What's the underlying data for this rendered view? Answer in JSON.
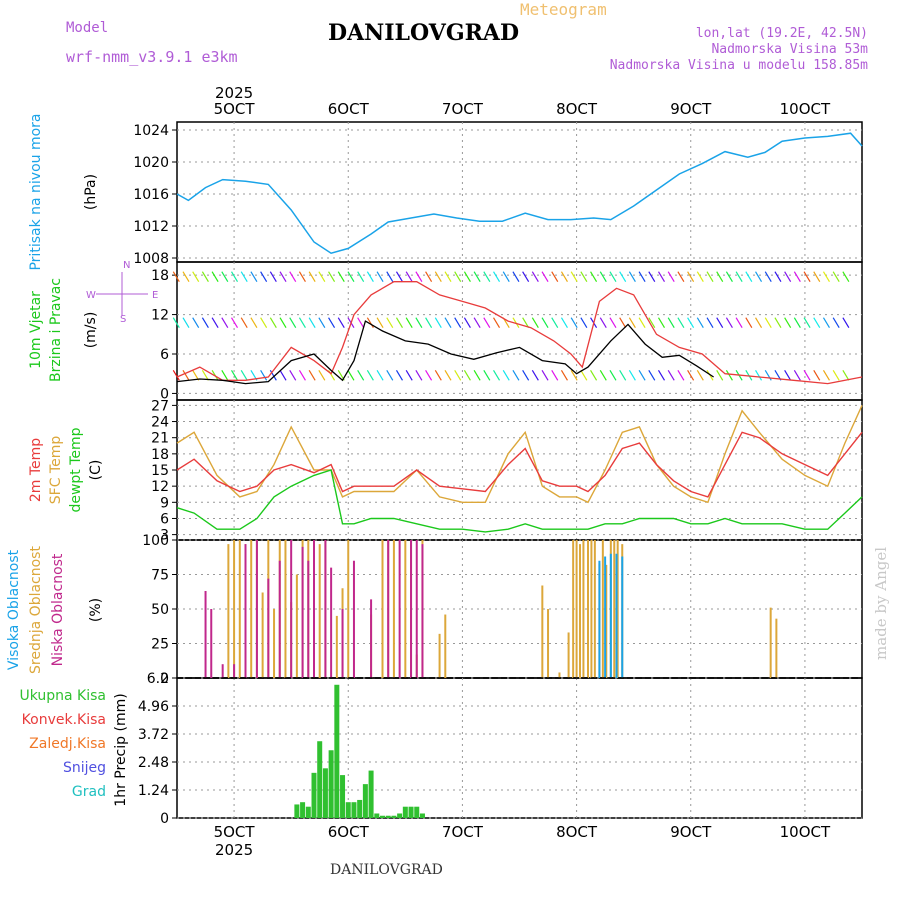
{
  "header": {
    "model_label": "Model",
    "model_name": "wrf-nmm_v3.9.1 e3km",
    "meteogram": "Meteogram",
    "station": "DANILOVGRAD",
    "location_lines": [
      "lon,lat (19.2E, 42.5N)",
      "Nadmorska Visina 53m",
      "Nadmorska Visina u modelu 158.85m"
    ]
  },
  "footer": {
    "station": "DANILOVGRAD",
    "watermark": "made by Angel"
  },
  "colors": {
    "pressure": "#1aa3e8",
    "t2m": "#e83c3c",
    "sfc": "#dca73a",
    "dew": "#1bc81b",
    "high_cloud": "#1aa3e8",
    "mid_cloud": "#dca73a",
    "low_cloud": "#c0288c",
    "precip": "#30c030",
    "conv": "#e83c3c",
    "frozen": "#f07828",
    "snow": "#5050e0",
    "hail": "#20c0c0",
    "gust": "#e83c3c",
    "speed": "#000000",
    "panel_label_pressure": "#1aa3e8"
  },
  "chart_data": [
    {
      "type": "line",
      "title": "Pritisak na nivou mora",
      "ylabel": "(hPa)",
      "year_label": "2025",
      "x_start_day": 4.5,
      "x_end_day": 10.5,
      "x_tick_labels": [
        "5OCT",
        "6OCT",
        "7OCT",
        "8OCT",
        "9OCT",
        "10OCT"
      ],
      "x_tick_days": [
        5,
        6,
        7,
        8,
        9,
        10
      ],
      "ylim": [
        1007.5,
        1025
      ],
      "yticks": [
        1008,
        1012,
        1016,
        1020,
        1024
      ],
      "series": [
        {
          "name": "MSLP",
          "x": [
            4.5,
            4.6,
            4.75,
            4.9,
            5.1,
            5.3,
            5.5,
            5.7,
            5.85,
            6.0,
            6.2,
            6.35,
            6.55,
            6.75,
            6.95,
            7.15,
            7.35,
            7.55,
            7.75,
            7.95,
            8.15,
            8.3,
            8.5,
            8.7,
            8.9,
            9.1,
            9.3,
            9.5,
            9.65,
            9.8,
            10.0,
            10.2,
            10.4,
            10.5
          ],
          "values": [
            1016,
            1015.2,
            1016.8,
            1017.8,
            1017.6,
            1017.2,
            1014,
            1010,
            1008.6,
            1009.2,
            1011,
            1012.5,
            1013,
            1013.5,
            1013,
            1012.6,
            1012.6,
            1013.6,
            1012.8,
            1012.8,
            1013,
            1012.8,
            1014.5,
            1016.5,
            1018.5,
            1019.8,
            1021.3,
            1020.6,
            1021.2,
            1022.6,
            1023,
            1023.2,
            1023.6,
            1022
          ]
        }
      ]
    },
    {
      "type": "line",
      "title": "10m Vjetar Brzina i Pravac",
      "ylabel": "(m/s)",
      "legend": [
        "N",
        "E",
        "W",
        "S"
      ],
      "ylim": [
        -1,
        20
      ],
      "yticks": [
        0,
        6,
        12,
        18
      ],
      "series": [
        {
          "name": "speed",
          "x": [
            4.5,
            4.7,
            4.9,
            5.1,
            5.3,
            5.5,
            5.7,
            5.85,
            5.95,
            6.05,
            6.15,
            6.3,
            6.5,
            6.7,
            6.9,
            7.1,
            7.3,
            7.5,
            7.7,
            7.9,
            8.0,
            8.1,
            8.3,
            8.45,
            8.6,
            8.75,
            8.9,
            9.05,
            9.2
          ],
          "values": [
            1.8,
            2.2,
            2,
            1.5,
            1.8,
            5,
            6,
            3.5,
            2,
            5,
            11,
            9.5,
            8,
            7.5,
            6,
            5.2,
            6.2,
            7,
            5,
            4.5,
            3,
            4,
            8,
            10.5,
            7.5,
            5.5,
            5.8,
            4.2,
            2.5
          ]
        },
        {
          "name": "gust",
          "x": [
            4.5,
            4.7,
            4.9,
            5.1,
            5.3,
            5.5,
            5.7,
            5.85,
            5.95,
            6.05,
            6.2,
            6.4,
            6.6,
            6.8,
            7.0,
            7.2,
            7.4,
            7.6,
            7.8,
            7.95,
            8.05,
            8.2,
            8.35,
            8.5,
            8.7,
            8.9,
            9.1,
            9.3,
            9.6,
            9.9,
            10.2,
            10.5
          ],
          "values": [
            2.5,
            4,
            2,
            2,
            2.5,
            7,
            5,
            3,
            7,
            12,
            15,
            17,
            17,
            15,
            14,
            13,
            11,
            10,
            8,
            6,
            4,
            14,
            16,
            15,
            9,
            7,
            6,
            3,
            2.5,
            2,
            1.5,
            2.5
          ]
        }
      ]
    },
    {
      "type": "line",
      "title": "2m Temp / SFC Temp / dewpt Temp",
      "ylabel": "(C)",
      "ylim": [
        2,
        28
      ],
      "yticks": [
        3,
        6,
        9,
        12,
        15,
        18,
        21,
        24,
        27
      ],
      "x": [
        4.5,
        4.65,
        4.85,
        5.05,
        5.2,
        5.35,
        5.5,
        5.7,
        5.85,
        5.95,
        6.05,
        6.2,
        6.4,
        6.6,
        6.8,
        7.0,
        7.2,
        7.4,
        7.55,
        7.7,
        7.85,
        8.0,
        8.1,
        8.25,
        8.4,
        8.55,
        8.7,
        8.85,
        9.0,
        9.15,
        9.3,
        9.45,
        9.6,
        9.8,
        10.0,
        10.2,
        10.35,
        10.5
      ],
      "series": [
        {
          "name": "2m Temp",
          "values": [
            15,
            17,
            13,
            11,
            12,
            15,
            16,
            14.5,
            16,
            11,
            12,
            12,
            12,
            15,
            12,
            11.5,
            11,
            16,
            19,
            13,
            12,
            12,
            11,
            14,
            19,
            20,
            16,
            13,
            11,
            10,
            16,
            22,
            21,
            18,
            16,
            14,
            18,
            22
          ]
        },
        {
          "name": "SFC Temp",
          "values": [
            20,
            22,
            14,
            10,
            11,
            16,
            23,
            15,
            15,
            10,
            11,
            11,
            11,
            15,
            10,
            9,
            9,
            18,
            22,
            12,
            10,
            10,
            9,
            15,
            22,
            23,
            16,
            12,
            10,
            9,
            18,
            26,
            22,
            17,
            14,
            12,
            20,
            27
          ]
        },
        {
          "name": "dewpt Temp",
          "values": [
            8,
            7,
            4,
            4,
            6,
            10,
            12,
            14,
            15,
            5,
            5,
            6,
            6,
            5,
            4,
            4,
            3.5,
            4,
            5,
            4,
            4,
            4,
            4,
            5,
            5,
            6,
            6,
            6,
            5,
            5,
            6,
            5,
            5,
            5,
            4,
            4,
            7,
            10
          ]
        }
      ]
    },
    {
      "type": "bar",
      "title": "Visoka Oblacnost / Srednja Oblacnost / Niska Oblacnost",
      "ylabel": "(%)",
      "ylim": [
        0,
        100
      ],
      "yticks": [
        0,
        25,
        50,
        75,
        100
      ],
      "series": [
        {
          "name": "Srednja Oblacnost",
          "x": [
            4.95,
            5.0,
            5.05,
            5.1,
            5.15,
            5.2,
            5.25,
            5.3,
            5.35,
            5.4,
            5.45,
            5.5,
            5.55,
            5.6,
            5.65,
            5.7,
            5.75,
            5.8,
            5.9,
            5.95,
            6.0,
            6.2,
            6.3,
            6.35,
            6.4,
            6.5,
            6.55,
            6.6,
            6.65,
            6.8,
            6.85,
            7.7,
            7.75,
            7.85,
            7.93,
            7.97,
            8.0,
            8.03,
            8.06,
            8.1,
            8.13,
            8.16,
            8.2,
            8.23,
            8.26,
            8.3,
            8.33,
            8.36,
            8.4,
            9.7,
            9.75
          ],
          "values": [
            97,
            100,
            100,
            97,
            100,
            100,
            62,
            100,
            50,
            100,
            100,
            55,
            75,
            100,
            100,
            97,
            97,
            100,
            45,
            65,
            100,
            46,
            100,
            100,
            100,
            100,
            100,
            17,
            100,
            32,
            46,
            67,
            50,
            4,
            33,
            100,
            100,
            97,
            100,
            100,
            100,
            100,
            83,
            100,
            82,
            100,
            100,
            100,
            97,
            51,
            43
          ]
        },
        {
          "name": "Niska Oblacnost",
          "x": [
            4.75,
            4.8,
            4.9,
            5.0,
            5.1,
            5.2,
            5.3,
            5.4,
            5.5,
            5.6,
            5.65,
            5.7,
            5.8,
            5.85,
            5.95,
            6.05,
            6.2,
            6.35,
            6.45,
            6.55,
            6.6,
            6.65
          ],
          "values": [
            63,
            50,
            10,
            10,
            97,
            100,
            72,
            85,
            100,
            95,
            85,
            100,
            100,
            80,
            50,
            85,
            57,
            100,
            100,
            100,
            100,
            97
          ]
        },
        {
          "name": "Visoka Oblacnost",
          "x": [
            8.2,
            8.25,
            8.3,
            8.35,
            8.4
          ],
          "values": [
            85,
            88,
            90,
            90,
            88
          ]
        }
      ]
    },
    {
      "type": "bar",
      "title": "1hr Precip",
      "ylabel": "(mm)",
      "legend": [
        "Ukupna Kisa",
        "Konvek.Kisa",
        "Zaledj.Kisa",
        "Snijeg",
        "Grad"
      ],
      "ylim": [
        0,
        6.2
      ],
      "yticks": [
        0,
        1.24,
        2.48,
        3.72,
        4.96,
        6.2
      ],
      "x_tick_labels": [
        "5OCT",
        "6OCT",
        "7OCT",
        "8OCT",
        "9OCT",
        "10OCT"
      ],
      "year_label": "2025",
      "series": [
        {
          "name": "Ukupna Kisa",
          "x": [
            5.55,
            5.6,
            5.65,
            5.7,
            5.75,
            5.8,
            5.85,
            5.9,
            5.95,
            6.0,
            6.05,
            6.1,
            6.15,
            6.2,
            6.25,
            6.3,
            6.35,
            6.4,
            6.45,
            6.5,
            6.55,
            6.6,
            6.65
          ],
          "values": [
            0.6,
            0.7,
            0.5,
            2.0,
            3.4,
            2.2,
            3.0,
            5.9,
            1.9,
            0.7,
            0.7,
            0.8,
            1.5,
            2.1,
            0.2,
            0.1,
            0.1,
            0.1,
            0.2,
            0.5,
            0.5,
            0.5,
            0.2
          ]
        }
      ]
    }
  ]
}
